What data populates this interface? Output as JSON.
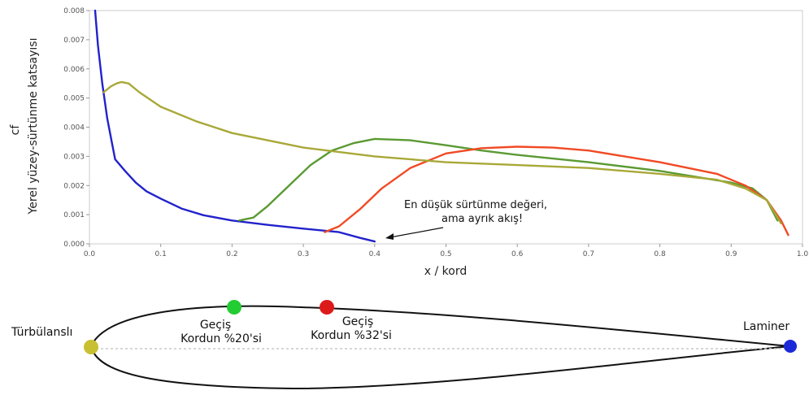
{
  "chart_data": {
    "type": "line",
    "xlabel": "x / kord",
    "ylabel_top": "cf",
    "ylabel": "Yerel yüzey-sürtünme katsayısı",
    "xlim": [
      0.0,
      1.0
    ],
    "ylim": [
      0.0,
      0.008
    ],
    "x_ticks": [
      "0.0",
      "0.1",
      "0.2",
      "0.3",
      "0.4",
      "0.5",
      "0.6",
      "0.7",
      "0.8",
      "0.9",
      "1.0"
    ],
    "y_ticks": [
      "0.000",
      "0.001",
      "0.002",
      "0.003",
      "0.004",
      "0.005",
      "0.006",
      "0.007",
      "0.008"
    ],
    "grid": false,
    "annotation": {
      "lines": [
        "En düşük sürtünme değeri,",
        "ama ayrık akış!"
      ],
      "arrow_to": [
        0.41,
        0.0002
      ]
    },
    "series": [
      {
        "color": "#2222cc",
        "points": [
          [
            0.008,
            0.008
          ],
          [
            0.012,
            0.0068
          ],
          [
            0.018,
            0.0055
          ],
          [
            0.025,
            0.0043
          ],
          [
            0.032,
            0.0034
          ],
          [
            0.036,
            0.0029
          ],
          [
            0.05,
            0.0025
          ],
          [
            0.065,
            0.0021
          ],
          [
            0.08,
            0.0018
          ],
          [
            0.1,
            0.00155
          ],
          [
            0.13,
            0.0012
          ],
          [
            0.16,
            0.00098
          ],
          [
            0.2,
            0.0008
          ],
          [
            0.25,
            0.00065
          ],
          [
            0.3,
            0.00052
          ],
          [
            0.35,
            0.0004
          ],
          [
            0.38,
            0.0002
          ],
          [
            0.4,
            8e-05
          ]
        ]
      },
      {
        "color": "#5a9a32",
        "points": [
          [
            0.21,
            0.0008
          ],
          [
            0.23,
            0.0009
          ],
          [
            0.25,
            0.0013
          ],
          [
            0.28,
            0.002
          ],
          [
            0.31,
            0.0027
          ],
          [
            0.34,
            0.0032
          ],
          [
            0.37,
            0.00345
          ],
          [
            0.4,
            0.0036
          ],
          [
            0.45,
            0.00355
          ],
          [
            0.5,
            0.00338
          ],
          [
            0.55,
            0.0032
          ],
          [
            0.6,
            0.00305
          ],
          [
            0.7,
            0.0028
          ],
          [
            0.8,
            0.0025
          ],
          [
            0.9,
            0.0021
          ],
          [
            0.93,
            0.0019
          ],
          [
            0.95,
            0.0015
          ],
          [
            0.965,
            0.0008
          ]
        ]
      },
      {
        "color": "#f04a25",
        "points": [
          [
            0.33,
            0.0004
          ],
          [
            0.35,
            0.0006
          ],
          [
            0.38,
            0.0012
          ],
          [
            0.41,
            0.0019
          ],
          [
            0.45,
            0.0026
          ],
          [
            0.5,
            0.0031
          ],
          [
            0.55,
            0.00328
          ],
          [
            0.6,
            0.00333
          ],
          [
            0.65,
            0.0033
          ],
          [
            0.7,
            0.0032
          ],
          [
            0.8,
            0.0028
          ],
          [
            0.88,
            0.0024
          ],
          [
            0.92,
            0.002
          ],
          [
            0.95,
            0.0015
          ],
          [
            0.97,
            0.0008
          ],
          [
            0.98,
            0.0003
          ]
        ]
      },
      {
        "color": "#a8a838",
        "points": [
          [
            0.02,
            0.0052
          ],
          [
            0.025,
            0.0053
          ],
          [
            0.03,
            0.0054
          ],
          [
            0.038,
            0.0055
          ],
          [
            0.045,
            0.00555
          ],
          [
            0.055,
            0.0055
          ],
          [
            0.07,
            0.0052
          ],
          [
            0.1,
            0.0047
          ],
          [
            0.15,
            0.0042
          ],
          [
            0.2,
            0.0038
          ],
          [
            0.3,
            0.0033
          ],
          [
            0.4,
            0.003
          ],
          [
            0.5,
            0.0028
          ],
          [
            0.6,
            0.0027
          ],
          [
            0.7,
            0.0026
          ],
          [
            0.8,
            0.0024
          ],
          [
            0.88,
            0.0022
          ],
          [
            0.92,
            0.0019
          ],
          [
            0.95,
            0.0015
          ],
          [
            0.97,
            0.0007
          ]
        ]
      }
    ]
  },
  "airfoil": {
    "labels": {
      "leading_edge": "Türbülanslı",
      "trailing_edge": "Laminer",
      "transition_1_line1": "Geçiş",
      "transition_1_line2": "Kordun %20'si",
      "transition_2_line1": "Geçiş",
      "transition_2_line2": "Kordun %32'si"
    },
    "marker_colors": {
      "leading_edge": "#c8c030",
      "trailing_edge": "#1a2ad8",
      "transition_1": "#22cc33",
      "transition_2": "#dd1a1a"
    }
  }
}
